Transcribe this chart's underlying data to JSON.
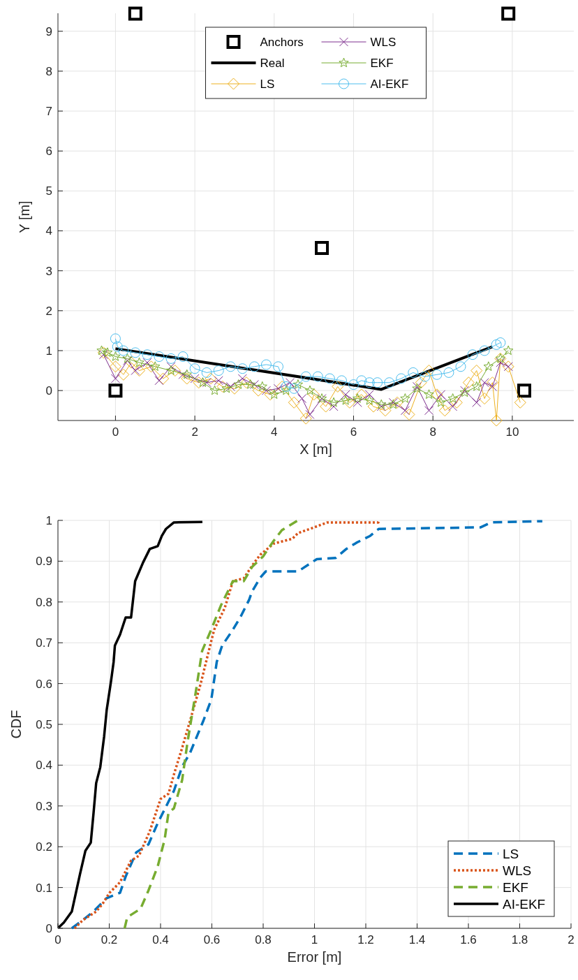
{
  "chart_data": [
    {
      "type": "line",
      "xlabel": "X [m]",
      "ylabel": "Y [m]",
      "xlim": [
        -1.45,
        11.55
      ],
      "ylim": [
        -0.75,
        9.45
      ],
      "xticks": [
        0,
        2,
        4,
        6,
        8,
        10
      ],
      "yticks": [
        0,
        1,
        2,
        3,
        4,
        5,
        6,
        7,
        8,
        9
      ],
      "grid": true,
      "legend": "top",
      "series": [
        {
          "name": "Anchors",
          "type": "scatter",
          "marker": "square",
          "color": "#000000",
          "x": [
            0,
            0.5,
            9.9,
            10.3,
            5.2
          ],
          "values": [
            0,
            9.44,
            9.44,
            0,
            3.57
          ]
        },
        {
          "name": "Real",
          "marker": "none",
          "color": "#000000",
          "x": [
            0,
            6.7,
            9.5
          ],
          "values": [
            1.05,
            0.03,
            1.1
          ]
        },
        {
          "name": "LS",
          "marker": "diamond",
          "color": "#edb120",
          "x": [
            -0.3,
            0,
            0.2,
            0.4,
            0.6,
            0.9,
            1.2,
            1.5,
            1.8,
            2.1,
            2.4,
            2.7,
            3.0,
            3.3,
            3.6,
            3.9,
            4.2,
            4.5,
            4.8,
            5.0,
            5.3,
            5.6,
            5.9,
            6.2,
            6.5,
            6.8,
            7.1,
            7.4,
            7.7,
            7.9,
            8.1,
            8.3,
            8.6,
            8.9,
            9.1,
            9.3,
            9.5,
            9.6,
            9.7,
            9.9,
            10.2
          ],
          "values": [
            0.95,
            0.6,
            0.4,
            0.7,
            0.5,
            0.6,
            0.3,
            0.5,
            0.3,
            0.2,
            0.3,
            0.1,
            0.05,
            0.2,
            0.0,
            -0.1,
            0.1,
            -0.3,
            -0.7,
            -0.1,
            -0.4,
            0.1,
            -0.3,
            -0.1,
            -0.4,
            -0.5,
            -0.3,
            -0.6,
            0.2,
            0.5,
            -0.1,
            -0.5,
            -0.3,
            0.2,
            0.5,
            -0.2,
            0.2,
            -0.75,
            0.8,
            0.6,
            -0.3
          ]
        },
        {
          "name": "WLS",
          "marker": "cross",
          "color": "#7e2f8e",
          "x": [
            -0.3,
            0,
            0.3,
            0.5,
            0.8,
            1.1,
            1.4,
            1.7,
            2.0,
            2.3,
            2.6,
            2.9,
            3.2,
            3.5,
            3.8,
            4.1,
            4.4,
            4.7,
            4.9,
            5.2,
            5.5,
            5.8,
            6.1,
            6.4,
            6.7,
            7.0,
            7.3,
            7.6,
            7.9,
            8.2,
            8.5,
            8.8,
            9.1,
            9.3,
            9.5,
            9.7,
            9.9
          ],
          "values": [
            0.9,
            0.3,
            0.75,
            0.5,
            0.7,
            0.25,
            0.6,
            0.4,
            0.3,
            0.2,
            0.25,
            0.1,
            0.3,
            0.15,
            0.0,
            0.05,
            0.2,
            -0.2,
            -0.6,
            -0.2,
            -0.4,
            -0.1,
            -0.3,
            -0.1,
            -0.4,
            -0.3,
            -0.5,
            0.1,
            -0.5,
            -0.1,
            -0.4,
            0.0,
            -0.3,
            0.2,
            0.1,
            0.7,
            0.6
          ]
        },
        {
          "name": "EKF",
          "marker": "star",
          "color": "#77ac30",
          "x": [
            -0.35,
            -0.2,
            0,
            0.3,
            0.6,
            1.0,
            1.4,
            1.8,
            2.2,
            2.5,
            2.8,
            3.1,
            3.4,
            3.7,
            4.0,
            4.3,
            4.6,
            4.9,
            5.2,
            5.5,
            5.8,
            6.1,
            6.4,
            6.7,
            7.0,
            7.3,
            7.6,
            7.9,
            8.2,
            8.5,
            8.8,
            9.1,
            9.4,
            9.7,
            9.9
          ],
          "values": [
            1.0,
            0.95,
            0.85,
            0.8,
            0.7,
            0.6,
            0.5,
            0.4,
            0.2,
            0.0,
            0.05,
            0.15,
            0.15,
            0.1,
            -0.1,
            0.0,
            0.15,
            0.0,
            -0.2,
            -0.3,
            -0.25,
            -0.2,
            -0.25,
            -0.35,
            -0.35,
            -0.2,
            0.05,
            -0.1,
            -0.3,
            -0.2,
            -0.05,
            0.1,
            0.6,
            0.8,
            1.0
          ]
        },
        {
          "name": "AI-EKF",
          "marker": "circle",
          "color": "#4dbeee",
          "x": [
            0,
            0.05,
            0.2,
            0.5,
            0.8,
            1.1,
            1.4,
            1.7,
            2.0,
            2.3,
            2.6,
            2.9,
            3.2,
            3.5,
            3.8,
            4.1,
            4.3,
            4.5,
            4.8,
            5.1,
            5.4,
            5.7,
            6.0,
            6.2,
            6.4,
            6.6,
            6.9,
            7.2,
            7.5,
            7.8,
            8.1,
            8.4,
            8.7,
            9.0,
            9.3,
            9.6,
            9.7
          ],
          "values": [
            1.3,
            1.1,
            1.0,
            0.95,
            0.9,
            0.85,
            0.8,
            0.85,
            0.55,
            0.45,
            0.5,
            0.6,
            0.55,
            0.6,
            0.65,
            0.6,
            0.1,
            0.05,
            0.35,
            0.35,
            0.3,
            0.25,
            0.15,
            0.25,
            0.2,
            0.2,
            0.2,
            0.3,
            0.45,
            0.35,
            0.4,
            0.45,
            0.6,
            0.9,
            1.0,
            1.15,
            1.2
          ]
        }
      ]
    },
    {
      "type": "line",
      "xlabel": "Error [m]",
      "ylabel": "CDF",
      "xlim": [
        0,
        2
      ],
      "ylim": [
        0,
        1
      ],
      "xticks": [
        0,
        0.2,
        0.4,
        0.6,
        0.8,
        1,
        1.2,
        1.4,
        1.6,
        1.8,
        2
      ],
      "yticks": [
        0,
        0.1,
        0.2,
        0.3,
        0.4,
        0.5,
        0.6,
        0.7,
        0.8,
        0.9,
        1
      ],
      "grid": true,
      "legend": "bottom right",
      "marker": "none",
      "series": [
        {
          "name": "LS",
          "color": "#0072bd",
          "line_style": "dashed",
          "x": [
            0.054,
            0.097,
            0.138,
            0.19,
            0.242,
            0.264,
            0.305,
            0.353,
            0.389,
            0.421,
            0.452,
            0.484,
            0.515,
            0.536,
            0.567,
            0.598,
            0.619,
            0.64,
            0.682,
            0.713,
            0.745,
            0.757,
            0.789,
            0.81,
            0.936,
            1.009,
            1.083,
            1.124,
            1.166,
            1.217,
            1.25,
            1.648,
            1.689,
            1.888
          ],
          "values": [
            0,
            0.02,
            0.041,
            0.074,
            0.087,
            0.127,
            0.186,
            0.206,
            0.258,
            0.298,
            0.337,
            0.396,
            0.43,
            0.462,
            0.509,
            0.561,
            0.653,
            0.693,
            0.732,
            0.765,
            0.805,
            0.826,
            0.86,
            0.875,
            0.875,
            0.905,
            0.908,
            0.93,
            0.946,
            0.962,
            0.979,
            0.983,
            0.995,
            0.998
          ]
        },
        {
          "name": "WLS",
          "color": "#d95319",
          "line_style": "dotted",
          "x": [
            0.065,
            0.097,
            0.149,
            0.174,
            0.201,
            0.242,
            0.285,
            0.316,
            0.358,
            0.4,
            0.431,
            0.452,
            0.484,
            0.515,
            0.557,
            0.588,
            0.609,
            0.65,
            0.682,
            0.724,
            0.766,
            0.789,
            0.841,
            0.914,
            0.936,
            0.999,
            1.05,
            1.249,
            1.249
          ],
          "values": [
            0,
            0.02,
            0.041,
            0.06,
            0.087,
            0.113,
            0.166,
            0.178,
            0.238,
            0.317,
            0.33,
            0.377,
            0.442,
            0.509,
            0.601,
            0.68,
            0.732,
            0.785,
            0.851,
            0.858,
            0.897,
            0.916,
            0.943,
            0.955,
            0.969,
            0.983,
            0.995,
            0.995,
            1
          ]
        },
        {
          "name": "EKF",
          "color": "#77ac30",
          "line_style": "dashed",
          "x": [
            0.26,
            0.27,
            0.322,
            0.353,
            0.389,
            0.416,
            0.431,
            0.452,
            0.484,
            0.505,
            0.536,
            0.562,
            0.598,
            0.635,
            0.682,
            0.724,
            0.757,
            0.8,
            0.841,
            0.873,
            0.935
          ],
          "values": [
            0,
            0.027,
            0.048,
            0.093,
            0.152,
            0.218,
            0.284,
            0.294,
            0.363,
            0.456,
            0.574,
            0.68,
            0.733,
            0.791,
            0.851,
            0.851,
            0.886,
            0.912,
            0.95,
            0.976,
            1
          ]
        },
        {
          "name": "AI-EKF",
          "color": "#000000",
          "line_style": "solid",
          "x": [
            0.003,
            0.023,
            0.054,
            0.086,
            0.107,
            0.128,
            0.139,
            0.149,
            0.165,
            0.18,
            0.19,
            0.207,
            0.217,
            0.222,
            0.242,
            0.264,
            0.285,
            0.301,
            0.332,
            0.358,
            0.389,
            0.405,
            0.421,
            0.452,
            0.563
          ],
          "values": [
            0.002,
            0.014,
            0.041,
            0.133,
            0.19,
            0.21,
            0.284,
            0.356,
            0.395,
            0.47,
            0.535,
            0.606,
            0.653,
            0.693,
            0.72,
            0.762,
            0.762,
            0.851,
            0.897,
            0.93,
            0.937,
            0.962,
            0.979,
            0.995,
            0.996
          ]
        }
      ]
    }
  ]
}
